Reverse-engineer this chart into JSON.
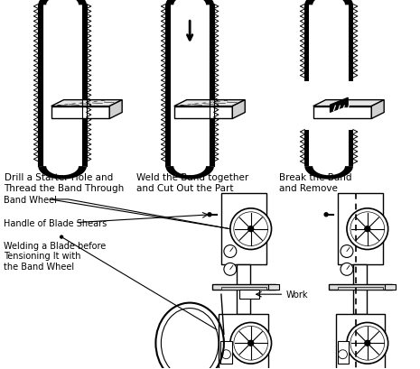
{
  "bg_color": "#ffffff",
  "text_color": "#000000",
  "labels": {
    "step1": "Drill a Starter Hole and\nThread the Band Through",
    "step2": "Weld the Band together\nand Cut Out the Part",
    "step3": "Break the Band\nand Remove",
    "band_wheel": "Band Wheel",
    "handle": "Handle of Blade Shears",
    "welding": "Welding a Blade before\nTensioning It with\nthe Band Wheel",
    "work": "Work"
  },
  "font_size": 7.0
}
